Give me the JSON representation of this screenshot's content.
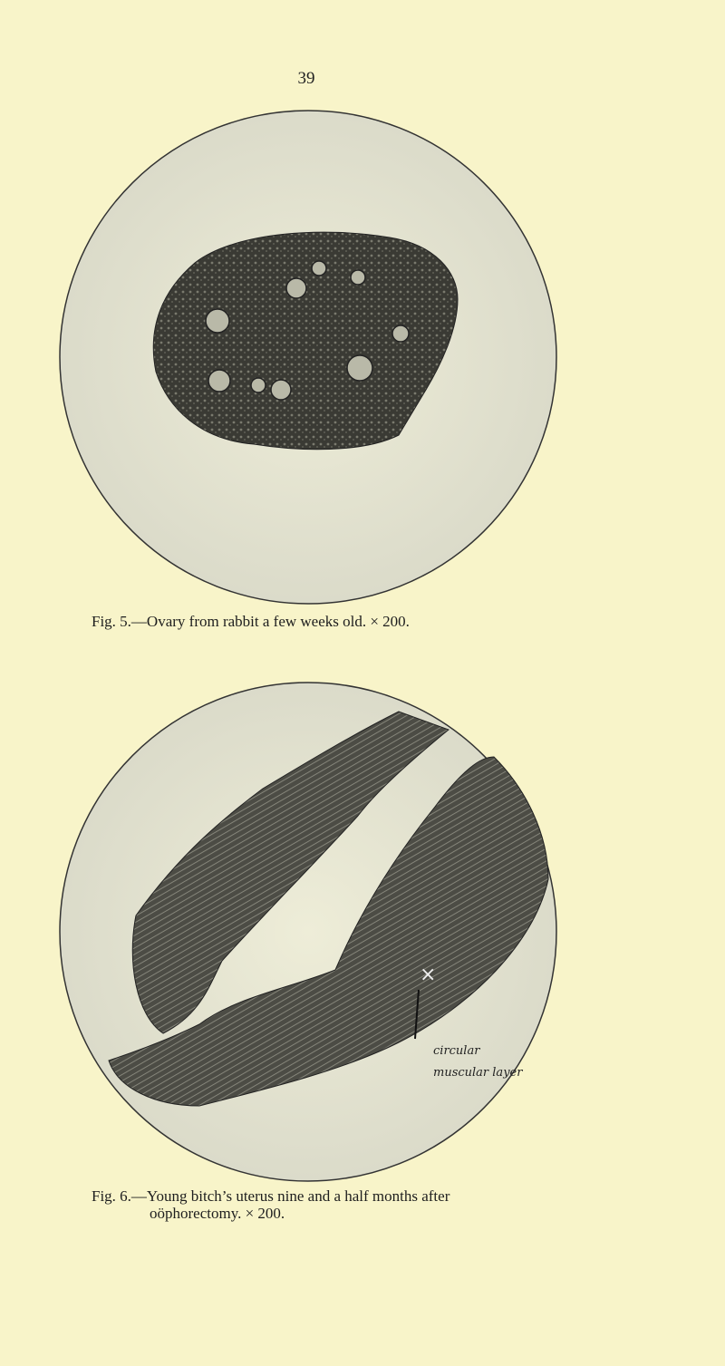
{
  "page_number": "39",
  "figures": [
    {
      "caption": [
        "Fig. 5.—Ovary from rabbit a few weeks old.  × 200."
      ]
    },
    {
      "caption": [
        "Fig. 6.—Young bitch’s uterus nine and a half months after",
        "oöphorectomy.  × 200."
      ],
      "annotation": [
        "circular",
        "muscular layer"
      ]
    }
  ]
}
